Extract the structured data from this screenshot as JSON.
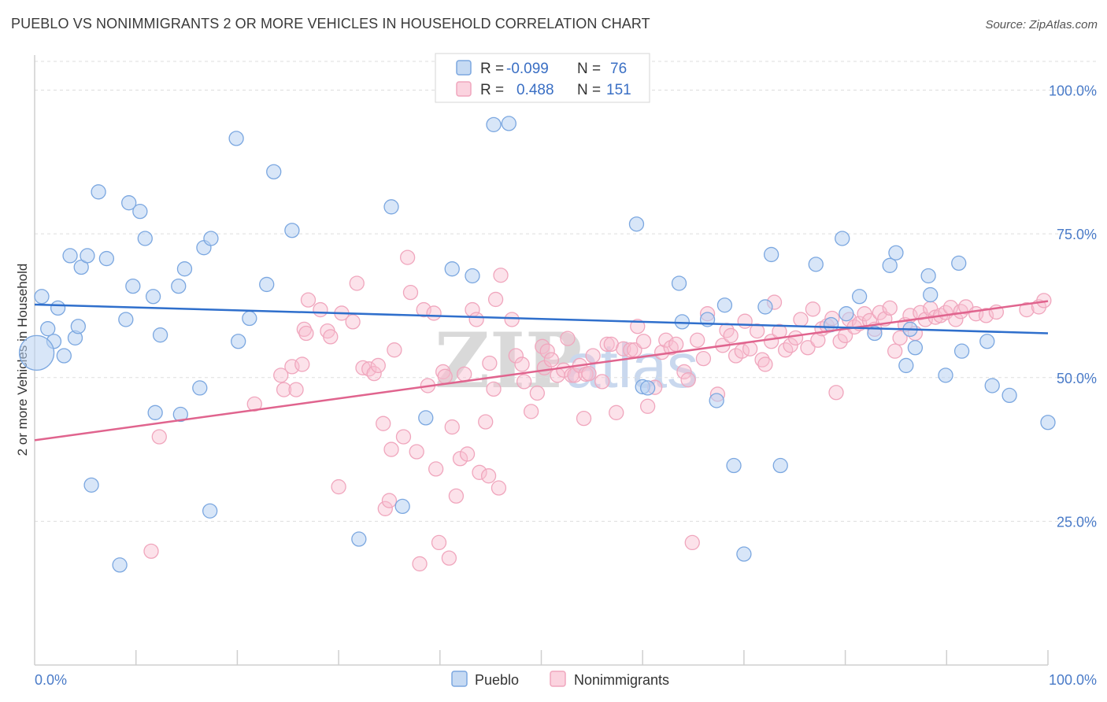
{
  "title": "PUEBLO VS NONIMMIGRANTS 2 OR MORE VEHICLES IN HOUSEHOLD CORRELATION CHART",
  "source": "Source: ZipAtlas.com",
  "watermark": {
    "zip": "ZIP",
    "atlas": "atlas"
  },
  "chart_data": {
    "type": "scatter",
    "title": "PUEBLO VS NONIMMIGRANTS 2 OR MORE VEHICLES IN HOUSEHOLD CORRELATION CHART",
    "xlabel": "",
    "ylabel": "2 or more Vehicles in Household",
    "xlim": [
      0,
      100
    ],
    "ylim": [
      0,
      105
    ],
    "x_tick_labels": [
      "0.0%",
      "100.0%"
    ],
    "y_ticks": [
      25,
      50,
      75,
      100
    ],
    "y_tick_labels": [
      "25.0%",
      "50.0%",
      "75.0%",
      "100.0%"
    ],
    "grid": true,
    "legend": {
      "placement": "top-center",
      "entries": [
        {
          "r_label": "R =",
          "r_value": "-0.099",
          "n_label": "N =",
          "n_value": "76"
        },
        {
          "r_label": "R =",
          "r_value": "0.488",
          "n_label": "N =",
          "n_value": "151"
        }
      ]
    },
    "series": [
      {
        "name": "Pueblo",
        "color": "#7ba7e0",
        "line_color": "#2f6fcc",
        "trend": {
          "x": [
            0,
            100
          ],
          "y": [
            62.7,
            57.7
          ]
        },
        "points": [
          [
            0.7,
            64.1
          ],
          [
            1.3,
            58.5
          ],
          [
            1.9,
            56.3
          ],
          [
            2.3,
            62.1
          ],
          [
            2.9,
            53.8
          ],
          [
            3.5,
            71.2
          ],
          [
            4.0,
            56.9
          ],
          [
            4.3,
            58.9
          ],
          [
            4.6,
            69.2
          ],
          [
            5.2,
            71.2
          ],
          [
            5.6,
            31.3
          ],
          [
            6.3,
            82.3
          ],
          [
            7.1,
            70.7
          ],
          [
            8.4,
            17.4
          ],
          [
            9.0,
            60.1
          ],
          [
            9.3,
            80.4
          ],
          [
            9.7,
            65.9
          ],
          [
            10.4,
            78.9
          ],
          [
            10.9,
            74.2
          ],
          [
            11.7,
            64.1
          ],
          [
            11.9,
            43.9
          ],
          [
            12.4,
            57.4
          ],
          [
            14.2,
            65.9
          ],
          [
            14.4,
            43.6
          ],
          [
            14.8,
            68.9
          ],
          [
            16.3,
            48.2
          ],
          [
            16.7,
            72.6
          ],
          [
            17.3,
            26.8
          ],
          [
            17.4,
            74.2
          ],
          [
            19.9,
            91.6
          ],
          [
            20.1,
            56.3
          ],
          [
            21.2,
            60.3
          ],
          [
            22.9,
            66.2
          ],
          [
            23.6,
            85.8
          ],
          [
            25.4,
            75.6
          ],
          [
            32.0,
            21.9
          ],
          [
            35.2,
            79.7
          ],
          [
            36.3,
            27.6
          ],
          [
            38.6,
            43.0
          ],
          [
            41.2,
            68.9
          ],
          [
            43.2,
            67.7
          ],
          [
            45.3,
            94.0
          ],
          [
            46.8,
            94.2
          ],
          [
            59.4,
            76.7
          ],
          [
            60.0,
            48.4
          ],
          [
            60.5,
            48.2
          ],
          [
            63.6,
            66.4
          ],
          [
            63.9,
            59.7
          ],
          [
            66.4,
            60.1
          ],
          [
            67.3,
            46.0
          ],
          [
            68.1,
            62.6
          ],
          [
            69.0,
            34.7
          ],
          [
            70.0,
            19.3
          ],
          [
            72.1,
            62.3
          ],
          [
            72.7,
            71.4
          ],
          [
            73.6,
            34.7
          ],
          [
            77.1,
            69.7
          ],
          [
            78.6,
            59.2
          ],
          [
            79.7,
            74.2
          ],
          [
            80.1,
            61.1
          ],
          [
            81.4,
            64.1
          ],
          [
            82.9,
            57.7
          ],
          [
            84.4,
            69.5
          ],
          [
            85.0,
            71.7
          ],
          [
            86.0,
            52.1
          ],
          [
            86.4,
            58.4
          ],
          [
            86.9,
            55.2
          ],
          [
            88.2,
            67.7
          ],
          [
            88.4,
            64.4
          ],
          [
            89.9,
            50.4
          ],
          [
            91.2,
            69.9
          ],
          [
            91.5,
            54.6
          ],
          [
            94.0,
            56.3
          ],
          [
            94.5,
            48.6
          ],
          [
            96.2,
            46.9
          ],
          [
            100.0,
            42.2
          ],
          [
            0.2,
            54.3
          ]
        ]
      },
      {
        "name": "Nonimmigrants",
        "color": "#f0a6bd",
        "line_color": "#e0648e",
        "trend": {
          "x": [
            0,
            100
          ],
          "y": [
            39.1,
            63.3
          ]
        },
        "points": [
          [
            11.5,
            19.8
          ],
          [
            12.3,
            39.7
          ],
          [
            21.7,
            45.4
          ],
          [
            24.3,
            50.4
          ],
          [
            24.6,
            47.9
          ],
          [
            25.4,
            51.9
          ],
          [
            25.8,
            47.9
          ],
          [
            26.4,
            52.3
          ],
          [
            26.6,
            58.4
          ],
          [
            26.8,
            57.7
          ],
          [
            27.0,
            63.5
          ],
          [
            28.2,
            61.8
          ],
          [
            28.9,
            58.1
          ],
          [
            29.2,
            57.1
          ],
          [
            30.0,
            31.0
          ],
          [
            30.3,
            61.2
          ],
          [
            31.4,
            59.7
          ],
          [
            31.8,
            66.4
          ],
          [
            32.4,
            51.7
          ],
          [
            33.0,
            51.5
          ],
          [
            33.5,
            50.7
          ],
          [
            33.9,
            52.1
          ],
          [
            34.4,
            42.0
          ],
          [
            34.6,
            27.2
          ],
          [
            35.0,
            28.6
          ],
          [
            35.2,
            37.5
          ],
          [
            35.5,
            54.8
          ],
          [
            36.4,
            39.7
          ],
          [
            36.8,
            70.9
          ],
          [
            37.1,
            64.8
          ],
          [
            37.7,
            37.1
          ],
          [
            38.0,
            17.6
          ],
          [
            38.4,
            61.8
          ],
          [
            38.8,
            48.6
          ],
          [
            39.4,
            61.2
          ],
          [
            39.6,
            34.1
          ],
          [
            39.9,
            21.3
          ],
          [
            40.3,
            51.0
          ],
          [
            40.5,
            50.2
          ],
          [
            40.9,
            18.6
          ],
          [
            41.2,
            41.4
          ],
          [
            41.6,
            29.4
          ],
          [
            42.0,
            35.9
          ],
          [
            42.4,
            50.6
          ],
          [
            42.7,
            36.7
          ],
          [
            43.2,
            61.8
          ],
          [
            43.6,
            60.1
          ],
          [
            43.9,
            33.5
          ],
          [
            44.5,
            42.3
          ],
          [
            44.8,
            32.9
          ],
          [
            44.9,
            52.5
          ],
          [
            45.3,
            48.0
          ],
          [
            45.5,
            63.6
          ],
          [
            45.8,
            30.8
          ],
          [
            46.0,
            67.8
          ],
          [
            47.1,
            60.1
          ],
          [
            47.5,
            53.8
          ],
          [
            48.1,
            52.3
          ],
          [
            48.3,
            49.3
          ],
          [
            49.0,
            44.1
          ],
          [
            49.6,
            47.3
          ],
          [
            50.1,
            55.4
          ],
          [
            50.3,
            51.7
          ],
          [
            50.6,
            54.6
          ],
          [
            51.0,
            53.1
          ],
          [
            51.6,
            50.4
          ],
          [
            52.2,
            51.3
          ],
          [
            52.6,
            56.8
          ],
          [
            53.0,
            50.4
          ],
          [
            53.3,
            50.4
          ],
          [
            53.8,
            52.1
          ],
          [
            54.2,
            42.9
          ],
          [
            54.4,
            50.6
          ],
          [
            54.7,
            50.7
          ],
          [
            55.1,
            53.8
          ],
          [
            56.0,
            49.3
          ],
          [
            56.5,
            55.8
          ],
          [
            56.9,
            55.8
          ],
          [
            57.4,
            43.9
          ],
          [
            58.1,
            55.0
          ],
          [
            58.8,
            54.8
          ],
          [
            59.2,
            54.8
          ],
          [
            59.5,
            58.9
          ],
          [
            60.1,
            56.3
          ],
          [
            60.5,
            45.0
          ],
          [
            61.2,
            48.3
          ],
          [
            61.9,
            54.4
          ],
          [
            62.3,
            56.5
          ],
          [
            62.8,
            55.2
          ],
          [
            63.3,
            55.8
          ],
          [
            64.1,
            51.0
          ],
          [
            64.5,
            49.6
          ],
          [
            64.9,
            21.3
          ],
          [
            65.4,
            56.5
          ],
          [
            66.0,
            53.3
          ],
          [
            66.4,
            61.1
          ],
          [
            67.4,
            47.1
          ],
          [
            67.9,
            55.6
          ],
          [
            68.3,
            58.2
          ],
          [
            68.7,
            57.3
          ],
          [
            69.2,
            53.8
          ],
          [
            69.8,
            54.6
          ],
          [
            70.1,
            59.8
          ],
          [
            70.6,
            55.0
          ],
          [
            71.3,
            58.1
          ],
          [
            71.8,
            53.1
          ],
          [
            72.1,
            52.3
          ],
          [
            72.7,
            56.3
          ],
          [
            73.0,
            63.1
          ],
          [
            73.5,
            58.0
          ],
          [
            74.1,
            54.8
          ],
          [
            74.6,
            55.6
          ],
          [
            75.1,
            56.9
          ],
          [
            75.6,
            60.1
          ],
          [
            76.3,
            55.2
          ],
          [
            76.8,
            61.9
          ],
          [
            77.3,
            56.5
          ],
          [
            77.7,
            58.5
          ],
          [
            78.2,
            59.0
          ],
          [
            78.7,
            60.3
          ],
          [
            79.1,
            47.4
          ],
          [
            79.5,
            56.3
          ],
          [
            80.0,
            57.3
          ],
          [
            80.4,
            60.1
          ],
          [
            80.9,
            58.8
          ],
          [
            81.4,
            59.4
          ],
          [
            81.9,
            61.1
          ],
          [
            82.4,
            59.9
          ],
          [
            82.9,
            58.4
          ],
          [
            83.4,
            61.3
          ],
          [
            83.9,
            60.2
          ],
          [
            84.4,
            62.1
          ],
          [
            84.9,
            54.6
          ],
          [
            85.4,
            56.9
          ],
          [
            85.9,
            59.2
          ],
          [
            86.4,
            60.8
          ],
          [
            86.9,
            57.7
          ],
          [
            87.4,
            61.3
          ],
          [
            87.9,
            60.1
          ],
          [
            88.4,
            62.0
          ],
          [
            88.9,
            60.5
          ],
          [
            89.4,
            60.8
          ],
          [
            89.9,
            61.3
          ],
          [
            90.4,
            62.2
          ],
          [
            90.9,
            60.1
          ],
          [
            91.4,
            61.5
          ],
          [
            91.9,
            62.3
          ],
          [
            92.9,
            61.1
          ],
          [
            93.9,
            60.8
          ],
          [
            94.9,
            61.4
          ],
          [
            97.9,
            61.8
          ],
          [
            99.1,
            62.3
          ],
          [
            99.6,
            63.4
          ]
        ]
      }
    ]
  },
  "bottom_legend": {
    "items": [
      "Pueblo",
      "Nonimmigrants"
    ]
  }
}
